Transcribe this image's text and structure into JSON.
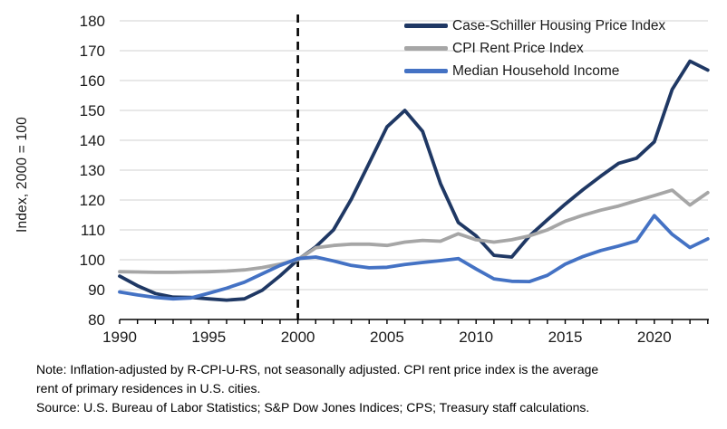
{
  "chart_data": {
    "type": "line",
    "title": "",
    "xlabel": "",
    "ylabel": "Index, 2000 = 100",
    "ylim": [
      80,
      180
    ],
    "ytick_step": 10,
    "xlim": [
      1990,
      2023
    ],
    "xticks": [
      1990,
      1995,
      2000,
      2005,
      2010,
      2015,
      2020
    ],
    "minor_xtick_step": 1,
    "grid": true,
    "legend_position": "top-right",
    "gridline_color": "#D9D9D9",
    "axis_color": "#000000",
    "reference_line": {
      "type": "vline",
      "x": 2000,
      "style": "dashed",
      "color": "#000000"
    },
    "x": [
      1990,
      1991,
      1992,
      1993,
      1994,
      1995,
      1996,
      1997,
      1998,
      1999,
      2000,
      2001,
      2002,
      2003,
      2004,
      2005,
      2006,
      2007,
      2008,
      2009,
      2010,
      2011,
      2012,
      2013,
      2014,
      2015,
      2016,
      2017,
      2018,
      2019,
      2020,
      2021,
      2022,
      2023
    ],
    "series": [
      {
        "name": "Case-Schiller Housing Price Index",
        "color": "#1F3864",
        "values": [
          94.5,
          91.3,
          88.7,
          87.5,
          87.4,
          86.9,
          86.5,
          86.9,
          89.8,
          94.6,
          100,
          104.3,
          110,
          120.3,
          132.3,
          144.5,
          150,
          143,
          125.5,
          112.5,
          108,
          101.5,
          100.9,
          108,
          113.4,
          118.6,
          123.5,
          128,
          132.3,
          134,
          139.5,
          157,
          166.5,
          163.5
        ]
      },
      {
        "name": "CPI Rent Price Index",
        "color": "#A6A6A6",
        "values": [
          96,
          95.9,
          95.8,
          95.8,
          95.9,
          96,
          96.2,
          96.6,
          97.4,
          98.5,
          100,
          104,
          104.8,
          105.2,
          105.2,
          104.8,
          105.9,
          106.5,
          106.2,
          108.7,
          106.7,
          105.9,
          106.7,
          108,
          110,
          112.9,
          114.9,
          116.6,
          118,
          119.8,
          121.5,
          123.3,
          118.3,
          122.5
        ]
      },
      {
        "name": "Median Household Income",
        "color": "#4472C4",
        "values": [
          89.2,
          88.2,
          87.4,
          86.9,
          87.2,
          88.8,
          90.5,
          92.5,
          95.3,
          98.1,
          100.4,
          100.9,
          99.6,
          98.1,
          97.3,
          97.5,
          98.4,
          99.1,
          99.7,
          100.4,
          96.9,
          93.6,
          92.8,
          92.7,
          94.8,
          98.5,
          101.1,
          103.1,
          104.6,
          106.3,
          114.8,
          108.5,
          104.1,
          107
        ]
      }
    ]
  },
  "notes": {
    "line1": "Note: Inflation-adjusted by R-CPI-U-RS, not seasonally adjusted. CPI rent price index is the average",
    "line2": "rent of primary residences in U.S. cities.",
    "source": "Source: U.S. Bureau of Labor Statistics; S&P Dow Jones Indices; CPS; Treasury staff calculations."
  }
}
